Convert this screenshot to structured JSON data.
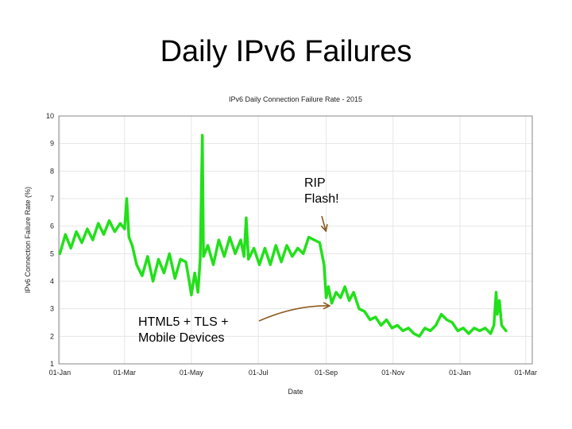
{
  "slide": {
    "title": "Daily IPv6 Failures"
  },
  "annotations": [
    {
      "lines": [
        "RIP",
        "Flash!"
      ]
    },
    {
      "lines": [
        "HTML5 + TLS +",
        "Mobile Devices"
      ]
    }
  ],
  "colors": {
    "series": "#22e01a",
    "arrow": "#8b5a1e",
    "grid": "#e6e6e6"
  },
  "chart_data": {
    "type": "line",
    "title": "IPv6 Daily Connection Failure Rate - 2015",
    "xlabel": "Date",
    "ylabel": "IPv6 Connection Failure Rate (%)",
    "ylim": [
      1,
      10
    ],
    "yticks": [
      1,
      2,
      3,
      4,
      5,
      6,
      7,
      8,
      9,
      10
    ],
    "xticks": [
      "01-Jan",
      "01-Mar",
      "01-May",
      "01-Jul",
      "01-Sep",
      "01-Nov",
      "01-Jan",
      "01-Mar"
    ],
    "xlim": [
      "2014-12-31",
      "2016-03-07"
    ],
    "grid": true,
    "series": [
      {
        "values": [
          [
            "2015-01-01",
            5.0
          ],
          [
            "2015-01-06",
            5.7
          ],
          [
            "2015-01-11",
            5.2
          ],
          [
            "2015-01-16",
            5.8
          ],
          [
            "2015-01-21",
            5.4
          ],
          [
            "2015-01-26",
            5.9
          ],
          [
            "2015-01-31",
            5.5
          ],
          [
            "2015-02-05",
            6.1
          ],
          [
            "2015-02-10",
            5.7
          ],
          [
            "2015-02-15",
            6.2
          ],
          [
            "2015-02-20",
            5.8
          ],
          [
            "2015-02-25",
            6.1
          ],
          [
            "2015-03-01",
            5.9
          ],
          [
            "2015-03-03",
            7.0
          ],
          [
            "2015-03-05",
            5.6
          ],
          [
            "2015-03-08",
            5.3
          ],
          [
            "2015-03-12",
            4.6
          ],
          [
            "2015-03-17",
            4.2
          ],
          [
            "2015-03-22",
            4.9
          ],
          [
            "2015-03-27",
            4.0
          ],
          [
            "2015-04-01",
            4.8
          ],
          [
            "2015-04-06",
            4.3
          ],
          [
            "2015-04-11",
            5.0
          ],
          [
            "2015-04-16",
            4.1
          ],
          [
            "2015-04-21",
            4.8
          ],
          [
            "2015-04-26",
            4.7
          ],
          [
            "2015-04-29",
            4.0
          ],
          [
            "2015-05-01",
            3.5
          ],
          [
            "2015-05-04",
            4.3
          ],
          [
            "2015-05-07",
            3.6
          ],
          [
            "2015-05-09",
            4.8
          ],
          [
            "2015-05-11",
            9.3
          ],
          [
            "2015-05-12",
            4.9
          ],
          [
            "2015-05-16",
            5.3
          ],
          [
            "2015-05-21",
            4.6
          ],
          [
            "2015-05-26",
            5.5
          ],
          [
            "2015-05-31",
            4.9
          ],
          [
            "2015-06-05",
            5.6
          ],
          [
            "2015-06-10",
            5.0
          ],
          [
            "2015-06-15",
            5.5
          ],
          [
            "2015-06-18",
            4.9
          ],
          [
            "2015-06-20",
            6.3
          ],
          [
            "2015-06-22",
            4.8
          ],
          [
            "2015-06-27",
            5.2
          ],
          [
            "2015-07-02",
            4.6
          ],
          [
            "2015-07-07",
            5.2
          ],
          [
            "2015-07-12",
            4.6
          ],
          [
            "2015-07-17",
            5.3
          ],
          [
            "2015-07-22",
            4.7
          ],
          [
            "2015-07-27",
            5.3
          ],
          [
            "2015-08-01",
            4.9
          ],
          [
            "2015-08-06",
            5.2
          ],
          [
            "2015-08-11",
            5.0
          ],
          [
            "2015-08-16",
            5.6
          ],
          [
            "2015-08-21",
            5.5
          ],
          [
            "2015-08-26",
            5.4
          ],
          [
            "2015-08-30",
            4.6
          ],
          [
            "2015-09-01",
            3.4
          ],
          [
            "2015-09-03",
            3.8
          ],
          [
            "2015-09-06",
            3.2
          ],
          [
            "2015-09-10",
            3.6
          ],
          [
            "2015-09-14",
            3.4
          ],
          [
            "2015-09-18",
            3.8
          ],
          [
            "2015-09-22",
            3.3
          ],
          [
            "2015-09-26",
            3.6
          ],
          [
            "2015-10-01",
            3.0
          ],
          [
            "2015-10-06",
            2.9
          ],
          [
            "2015-10-11",
            2.6
          ],
          [
            "2015-10-16",
            2.7
          ],
          [
            "2015-10-21",
            2.4
          ],
          [
            "2015-10-26",
            2.6
          ],
          [
            "2015-10-31",
            2.3
          ],
          [
            "2015-11-05",
            2.4
          ],
          [
            "2015-11-10",
            2.2
          ],
          [
            "2015-11-15",
            2.3
          ],
          [
            "2015-11-20",
            2.1
          ],
          [
            "2015-11-25",
            2.0
          ],
          [
            "2015-11-30",
            2.3
          ],
          [
            "2015-12-05",
            2.2
          ],
          [
            "2015-12-10",
            2.4
          ],
          [
            "2015-12-15",
            2.8
          ],
          [
            "2015-12-20",
            2.6
          ],
          [
            "2015-12-25",
            2.5
          ],
          [
            "2015-12-30",
            2.2
          ],
          [
            "2016-01-04",
            2.3
          ],
          [
            "2016-01-09",
            2.1
          ],
          [
            "2016-01-14",
            2.3
          ],
          [
            "2016-01-19",
            2.2
          ],
          [
            "2016-01-24",
            2.3
          ],
          [
            "2016-01-29",
            2.1
          ],
          [
            "2016-02-01",
            2.4
          ],
          [
            "2016-02-03",
            3.6
          ],
          [
            "2016-02-04",
            2.8
          ],
          [
            "2016-02-06",
            3.3
          ],
          [
            "2016-02-08",
            2.4
          ],
          [
            "2016-02-12",
            2.2
          ]
        ]
      }
    ]
  }
}
